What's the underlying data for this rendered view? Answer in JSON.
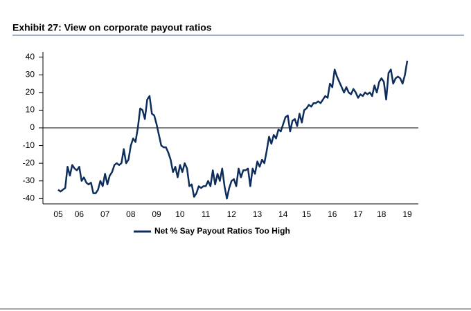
{
  "title": "Exhibit 27: View on corporate payout ratios",
  "chart_data": {
    "type": "line",
    "categories": [
      "05",
      null,
      null,
      null,
      null,
      null,
      null,
      null,
      null,
      "06",
      null,
      null,
      null,
      null,
      null,
      null,
      null,
      null,
      null,
      null,
      "07",
      null,
      null,
      null,
      null,
      null,
      null,
      null,
      null,
      null,
      null,
      "08",
      null,
      null,
      null,
      null,
      null,
      null,
      null,
      null,
      null,
      null,
      "09",
      null,
      null,
      null,
      null,
      null,
      null,
      null,
      null,
      null,
      "10",
      null,
      null,
      null,
      null,
      null,
      null,
      null,
      null,
      null,
      null,
      "11",
      null,
      null,
      null,
      null,
      null,
      null,
      null,
      null,
      null,
      null,
      "12",
      null,
      null,
      null,
      null,
      null,
      null,
      null,
      null,
      null,
      null,
      "13",
      null,
      null,
      null,
      null,
      null,
      null,
      null,
      null,
      null,
      null,
      "14",
      null,
      null,
      null,
      null,
      null,
      null,
      null,
      null,
      null,
      "15",
      null,
      null,
      null,
      null,
      null,
      null,
      null,
      null,
      null,
      null,
      "16",
      null,
      null,
      null,
      null,
      null,
      null,
      null,
      null,
      null,
      null,
      "17",
      null,
      null,
      null,
      null,
      null,
      null,
      null,
      null,
      null,
      "18",
      null,
      null,
      null,
      null,
      null,
      null,
      null,
      null,
      null,
      null,
      "19"
    ],
    "series": [
      {
        "name": "Net % Say Payout Ratios Too High",
        "color": "#0d2e5c",
        "values": [
          -35,
          -36,
          -35,
          -34,
          -22,
          -27,
          -21,
          -23,
          -24,
          -22,
          -30,
          -28,
          -31,
          -32,
          -31,
          -37,
          -37,
          -35,
          -30,
          -33,
          -26,
          -32,
          -27,
          -25,
          -21,
          -20,
          -21,
          -20,
          -12,
          -20,
          -18,
          -10,
          -6,
          -8,
          0,
          11,
          10,
          5,
          16,
          18,
          8,
          7,
          2,
          -4,
          -10,
          -11,
          -11,
          -14,
          -18,
          -25,
          -22,
          -28,
          -21,
          -25,
          -20,
          -23,
          -33,
          -32,
          -39,
          -37,
          -33,
          -34,
          -33,
          -33,
          -30,
          -33,
          -24,
          -32,
          -26,
          -30,
          -23,
          -33,
          -40,
          -34,
          -30,
          -29,
          -33,
          -23,
          -28,
          -24,
          -24,
          -23,
          -33,
          -23,
          -26,
          -19,
          -22,
          -18,
          -20,
          -13,
          -5,
          -9,
          -4,
          -6,
          -1,
          -2,
          2,
          6,
          7,
          -2,
          4,
          5,
          1,
          8,
          3,
          10,
          11,
          13,
          12,
          14,
          14,
          15,
          14,
          16,
          18,
          17,
          25,
          23,
          33,
          29,
          26,
          23,
          20,
          23,
          20,
          19,
          22,
          20,
          17,
          19,
          18,
          20,
          19,
          20,
          18,
          24,
          20,
          26,
          28,
          26,
          16,
          31,
          33,
          25,
          28,
          29,
          28,
          25,
          30,
          38
        ]
      }
    ],
    "ylim": [
      -43,
      43
    ],
    "yticks": [
      -40,
      -30,
      -20,
      -10,
      0,
      10,
      20,
      30,
      40
    ],
    "zero_line": true
  }
}
